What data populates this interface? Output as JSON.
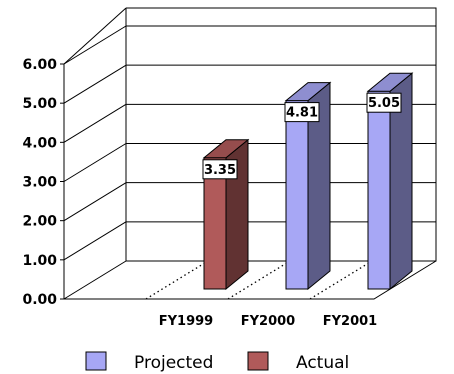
{
  "chart_data": {
    "type": "bar",
    "title": "",
    "xlabel": "",
    "ylabel": "",
    "ylim": [
      0,
      6
    ],
    "yticks": [
      "0.00",
      "1.00",
      "2.00",
      "3.00",
      "4.00",
      "5.00",
      "6.00"
    ],
    "grid": true,
    "three_d": true,
    "categories": [
      "FY1999",
      "FY2000",
      "FY2001"
    ],
    "series": [
      {
        "name": "Actual",
        "color": "#b05a5a",
        "values": [
          3.35,
          null,
          null
        ]
      },
      {
        "name": "Projected",
        "color": "#a7a7f5",
        "values": [
          null,
          4.81,
          5.05
        ]
      }
    ],
    "data_labels": [
      "3.35",
      "4.81",
      "5.05"
    ],
    "legend": {
      "position": "bottom",
      "items": [
        {
          "label": "Projected",
          "color": "#a7a7f5"
        },
        {
          "label": "Actual",
          "color": "#b05a5a"
        }
      ]
    }
  }
}
